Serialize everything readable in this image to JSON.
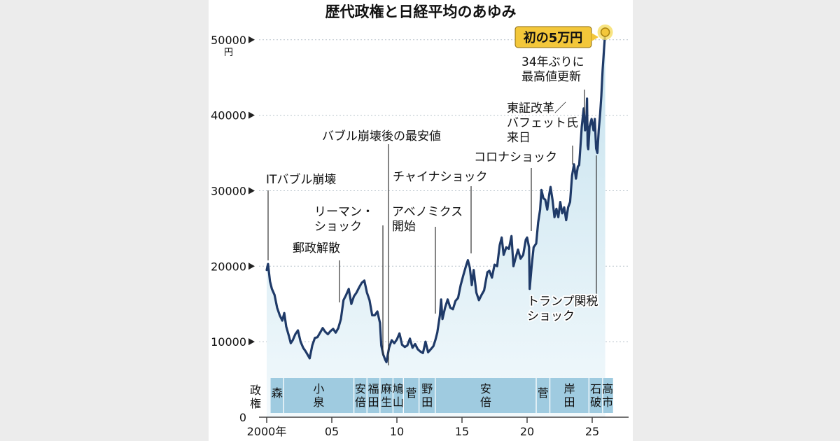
{
  "chart_data": {
    "type": "area",
    "title": "歴代政権と日経平均のあゆみ",
    "y_unit": "円",
    "ylim": [
      0,
      52000
    ],
    "xlim": [
      2000,
      2026.3
    ],
    "y_ticks": [
      {
        "value": 0,
        "label": "0"
      },
      {
        "value": 10000,
        "label": "10000"
      },
      {
        "value": 20000,
        "label": "20000"
      },
      {
        "value": 30000,
        "label": "30000"
      },
      {
        "value": 40000,
        "label": "40000"
      },
      {
        "value": 50000,
        "label": "50000"
      }
    ],
    "x_ticks": [
      {
        "value": 2000,
        "label": "2000年"
      },
      {
        "value": 2005,
        "label": "05"
      },
      {
        "value": 2010,
        "label": "10"
      },
      {
        "value": 2015,
        "label": "15"
      },
      {
        "value": 2020,
        "label": "20"
      },
      {
        "value": 2025,
        "label": "25"
      }
    ],
    "series": [
      {
        "color": "#1f3a68",
        "fill": "#d6ecf4",
        "points": [
          [
            2000.0,
            19500
          ],
          [
            2000.1,
            20300
          ],
          [
            2000.25,
            18000
          ],
          [
            2000.4,
            17000
          ],
          [
            2000.6,
            16200
          ],
          [
            2000.8,
            14500
          ],
          [
            2001.0,
            13500
          ],
          [
            2001.2,
            12800
          ],
          [
            2001.35,
            13800
          ],
          [
            2001.5,
            12000
          ],
          [
            2001.7,
            10800
          ],
          [
            2001.85,
            9800
          ],
          [
            2002.0,
            10200
          ],
          [
            2002.2,
            11000
          ],
          [
            2002.4,
            11500
          ],
          [
            2002.6,
            10000
          ],
          [
            2002.8,
            9200
          ],
          [
            2003.0,
            8700
          ],
          [
            2003.2,
            8100
          ],
          [
            2003.3,
            7800
          ],
          [
            2003.5,
            9500
          ],
          [
            2003.7,
            10500
          ],
          [
            2003.9,
            10600
          ],
          [
            2004.1,
            11200
          ],
          [
            2004.3,
            11800
          ],
          [
            2004.5,
            11300
          ],
          [
            2004.7,
            11000
          ],
          [
            2004.9,
            11400
          ],
          [
            2005.1,
            11700
          ],
          [
            2005.3,
            11200
          ],
          [
            2005.5,
            11800
          ],
          [
            2005.7,
            13000
          ],
          [
            2005.9,
            15500
          ],
          [
            2006.1,
            16200
          ],
          [
            2006.3,
            17000
          ],
          [
            2006.5,
            15000
          ],
          [
            2006.7,
            16000
          ],
          [
            2006.9,
            16500
          ],
          [
            2007.1,
            17200
          ],
          [
            2007.3,
            17800
          ],
          [
            2007.5,
            18100
          ],
          [
            2007.7,
            16500
          ],
          [
            2007.9,
            15500
          ],
          [
            2008.1,
            13500
          ],
          [
            2008.3,
            13500
          ],
          [
            2008.5,
            14000
          ],
          [
            2008.7,
            12500
          ],
          [
            2008.8,
            9500
          ],
          [
            2008.95,
            8300
          ],
          [
            2009.1,
            7600
          ],
          [
            2009.2,
            7300
          ],
          [
            2009.4,
            9200
          ],
          [
            2009.6,
            10200
          ],
          [
            2009.8,
            9800
          ],
          [
            2010.0,
            10300
          ],
          [
            2010.2,
            11100
          ],
          [
            2010.4,
            9600
          ],
          [
            2010.6,
            9300
          ],
          [
            2010.8,
            9500
          ],
          [
            2011.0,
            10400
          ],
          [
            2011.2,
            9200
          ],
          [
            2011.4,
            9700
          ],
          [
            2011.6,
            9000
          ],
          [
            2011.8,
            8700
          ],
          [
            2012.0,
            8500
          ],
          [
            2012.2,
            10000
          ],
          [
            2012.4,
            8600
          ],
          [
            2012.6,
            9000
          ],
          [
            2012.8,
            9400
          ],
          [
            2012.95,
            10200
          ],
          [
            2013.1,
            11200
          ],
          [
            2013.3,
            13500
          ],
          [
            2013.4,
            15600
          ],
          [
            2013.5,
            13000
          ],
          [
            2013.7,
            14500
          ],
          [
            2013.9,
            15600
          ],
          [
            2014.1,
            14500
          ],
          [
            2014.3,
            14300
          ],
          [
            2014.5,
            15400
          ],
          [
            2014.7,
            15800
          ],
          [
            2014.9,
            17500
          ],
          [
            2015.1,
            18800
          ],
          [
            2015.3,
            20000
          ],
          [
            2015.45,
            20800
          ],
          [
            2015.6,
            19800
          ],
          [
            2015.75,
            17500
          ],
          [
            2015.9,
            19500
          ],
          [
            2016.1,
            16500
          ],
          [
            2016.3,
            15500
          ],
          [
            2016.5,
            16200
          ],
          [
            2016.7,
            16800
          ],
          [
            2016.95,
            19200
          ],
          [
            2017.1,
            19400
          ],
          [
            2017.3,
            18500
          ],
          [
            2017.5,
            20200
          ],
          [
            2017.7,
            20000
          ],
          [
            2017.9,
            22800
          ],
          [
            2018.05,
            23800
          ],
          [
            2018.2,
            21500
          ],
          [
            2018.4,
            22500
          ],
          [
            2018.6,
            22300
          ],
          [
            2018.8,
            24000
          ],
          [
            2018.95,
            20000
          ],
          [
            2019.1,
            21000
          ],
          [
            2019.3,
            22200
          ],
          [
            2019.5,
            21000
          ],
          [
            2019.7,
            21500
          ],
          [
            2019.9,
            23500
          ],
          [
            2020.0,
            23800
          ],
          [
            2020.15,
            22500
          ],
          [
            2020.2,
            17000
          ],
          [
            2020.35,
            20000
          ],
          [
            2020.5,
            22500
          ],
          [
            2020.7,
            23000
          ],
          [
            2020.85,
            25800
          ],
          [
            2021.0,
            27500
          ],
          [
            2021.1,
            30100
          ],
          [
            2021.25,
            29000
          ],
          [
            2021.4,
            28800
          ],
          [
            2021.55,
            27500
          ],
          [
            2021.7,
            29500
          ],
          [
            2021.8,
            30500
          ],
          [
            2021.95,
            28800
          ],
          [
            2022.1,
            26500
          ],
          [
            2022.25,
            27600
          ],
          [
            2022.4,
            26500
          ],
          [
            2022.55,
            28500
          ],
          [
            2022.7,
            27000
          ],
          [
            2022.85,
            27800
          ],
          [
            2023.0,
            26100
          ],
          [
            2023.15,
            27800
          ],
          [
            2023.3,
            28500
          ],
          [
            2023.45,
            32000
          ],
          [
            2023.6,
            33500
          ],
          [
            2023.75,
            31600
          ],
          [
            2023.9,
            33200
          ],
          [
            2024.0,
            33400
          ],
          [
            2024.1,
            36000
          ],
          [
            2024.2,
            38500
          ],
          [
            2024.35,
            40900
          ],
          [
            2024.45,
            38000
          ],
          [
            2024.55,
            38900
          ],
          [
            2024.6,
            42200
          ],
          [
            2024.65,
            36000
          ],
          [
            2024.7,
            35500
          ],
          [
            2024.8,
            38500
          ],
          [
            2024.95,
            39500
          ],
          [
            2025.1,
            38000
          ],
          [
            2025.2,
            39500
          ],
          [
            2025.3,
            35600
          ],
          [
            2025.4,
            35000
          ],
          [
            2025.5,
            38000
          ],
          [
            2025.6,
            40000
          ],
          [
            2025.7,
            42500
          ],
          [
            2025.8,
            46000
          ],
          [
            2025.9,
            48500
          ],
          [
            2026.0,
            51000
          ]
        ]
      }
    ],
    "annotations": [
      {
        "label": "ITバブル崩壊",
        "x": 2000.1,
        "y": 20300
      },
      {
        "label": "郵政解散",
        "x": 2005.5,
        "y": 11800
      },
      {
        "label": "リーマン・\nショック",
        "x": 2008.8,
        "y": 9500
      },
      {
        "label": "バブル崩壊後の最安値",
        "x": 2009.2,
        "y": 7300
      },
      {
        "label": "アベノミクス\n開始",
        "x": 2012.95,
        "y": 10200
      },
      {
        "label": "チャイナショック",
        "x": 2015.45,
        "y": 20800
      },
      {
        "label": "コロナショック",
        "x": 2020.2,
        "y": 17000
      },
      {
        "label": "東証改革／\nバフェット氏\n来日",
        "x": 2023.45,
        "y": 32000
      },
      {
        "label": "34年ぶりに\n最高値更新",
        "x": 2024.1,
        "y": 36000
      },
      {
        "label": "トランプ関税\nショック",
        "x": 2025.3,
        "y": 35600
      }
    ],
    "highlight": {
      "label": "初の5万円",
      "x": 2026.0,
      "y": 51000,
      "color": "#f3c73a",
      "text_color": "#1e3a6a"
    },
    "administrations_header": "政\n権",
    "administrations": [
      {
        "name": "森",
        "start": 2000.3,
        "end": 2001.3
      },
      {
        "name": "小\n泉",
        "start": 2001.3,
        "end": 2006.7
      },
      {
        "name": "安\n倍",
        "start": 2006.7,
        "end": 2007.7
      },
      {
        "name": "福\n田",
        "start": 2007.7,
        "end": 2008.7
      },
      {
        "name": "麻\n生",
        "start": 2008.7,
        "end": 2009.7
      },
      {
        "name": "鳩\n山",
        "start": 2009.7,
        "end": 2010.5
      },
      {
        "name": "菅",
        "start": 2010.5,
        "end": 2011.7
      },
      {
        "name": "野\n田",
        "start": 2011.7,
        "end": 2012.95
      },
      {
        "name": "安\n倍",
        "start": 2012.95,
        "end": 2020.7
      },
      {
        "name": "菅",
        "start": 2020.7,
        "end": 2021.75
      },
      {
        "name": "岸\n田",
        "start": 2021.75,
        "end": 2024.75
      },
      {
        "name": "石\n破",
        "start": 2024.75,
        "end": 2025.8
      },
      {
        "name": "高\n市",
        "start": 2025.8,
        "end": 2026.6
      }
    ],
    "colors": {
      "line": "#1f3a68",
      "area_top": "#cde6f0",
      "area_bottom": "#eef7fb",
      "band": "#9fcbe0",
      "grid": "#b9c4cc"
    }
  }
}
